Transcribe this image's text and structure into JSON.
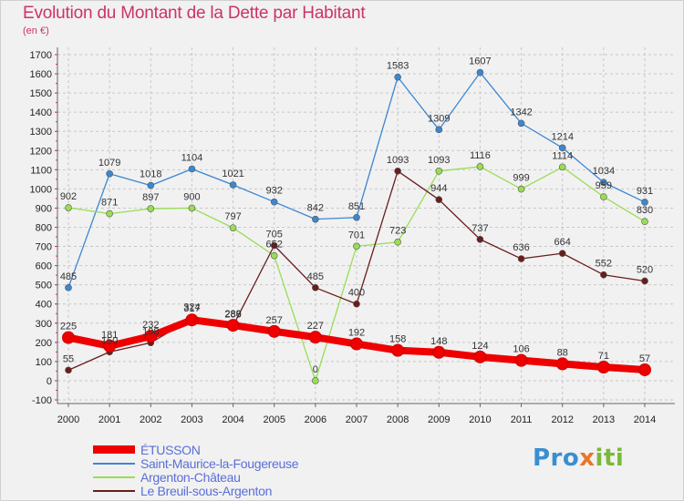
{
  "title": "Evolution du Montant de la Dette par Habitant",
  "subtitle": "(en €)",
  "logo": {
    "part1": "Pro",
    "part2": "x",
    "part3": "iti"
  },
  "chart_data": {
    "type": "line",
    "x": [
      "2000",
      "2001",
      "2002",
      "2003",
      "2004",
      "2005",
      "2006",
      "2007",
      "2008",
      "2009",
      "2010",
      "2011",
      "2012",
      "2013",
      "2014"
    ],
    "ylim": [
      -100,
      1700
    ],
    "yticks": [
      -100,
      0,
      100,
      200,
      300,
      400,
      500,
      600,
      700,
      800,
      900,
      1000,
      1100,
      1200,
      1300,
      1400,
      1500,
      1600,
      1700
    ],
    "grid": true,
    "legend_position": "bottom-left",
    "series": [
      {
        "name": "ÉTUSSON",
        "color": "#ee0000",
        "values": [
          225,
          181,
          232,
          317,
          289,
          257,
          227,
          192,
          158,
          148,
          124,
          106,
          88,
          71,
          57
        ]
      },
      {
        "name": "Saint-Maurice-la-Fougereuse",
        "color": "#3b87d1",
        "values": [
          485,
          1079,
          1018,
          1104,
          1021,
          932,
          842,
          851,
          1583,
          1309,
          1607,
          1342,
          1214,
          1034,
          931
        ]
      },
      {
        "name": "Argenton-Château",
        "color": "#99dd55",
        "values": [
          902,
          871,
          897,
          900,
          797,
          652,
          0,
          701,
          723,
          1093,
          1116,
          999,
          1114,
          959,
          830
        ]
      },
      {
        "name": "Le Breuil-sous-Argenton",
        "color": "#6b1c1c",
        "values": [
          55,
          150,
          198,
          324,
          286,
          705,
          485,
          400,
          1093,
          944,
          737,
          636,
          664,
          552,
          520
        ]
      }
    ]
  }
}
